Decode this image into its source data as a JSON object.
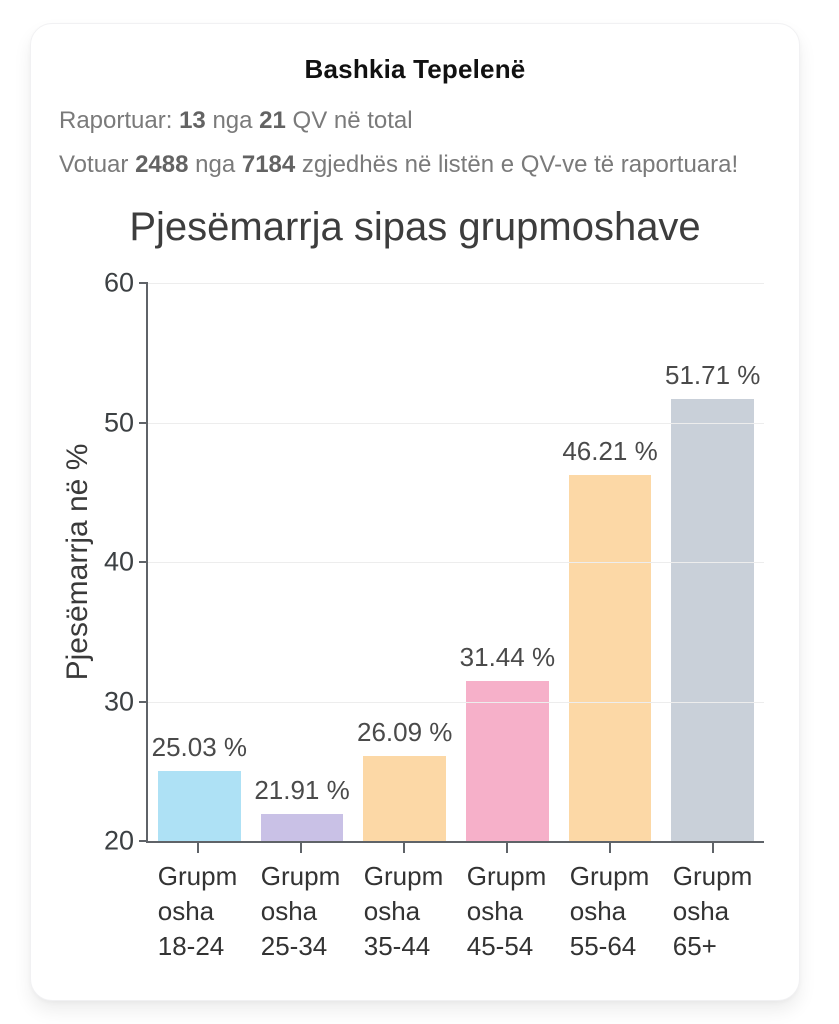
{
  "card": {
    "title": "Bashkia Tepelenë",
    "reported_line": {
      "label": "Raportuar:",
      "reported_count": "13",
      "conjunction": "nga",
      "total_count": "21",
      "suffix": "QV në total"
    },
    "voted_line": {
      "label": "Votuar",
      "voted_count": "2488",
      "conjunction": "nga",
      "total_count": "7184",
      "suffix": "zgjedhës në listën e QV-ve të raportuara!"
    }
  },
  "chart_data": {
    "type": "bar",
    "title": "Pjesëmarrja sipas grupmoshave",
    "ylabel": "Pjesëmarrja në %",
    "xlabel": "",
    "ylim": [
      20,
      60
    ],
    "yticks": [
      60,
      50,
      40,
      30,
      20
    ],
    "grid": true,
    "legend": false,
    "categories": [
      "Grupmosha 18-24",
      "Grupmosha 25-34",
      "Grupmosha 35-44",
      "Grupmosha 45-54",
      "Grupmosha 55-64",
      "Grupmosha 65+"
    ],
    "xtick_label_lines": [
      [
        "Grupm",
        "osha",
        "18-24"
      ],
      [
        "Grupm",
        "osha",
        "25-34"
      ],
      [
        "Grupm",
        "osha",
        "35-44"
      ],
      [
        "Grupm",
        "osha",
        "45-54"
      ],
      [
        "Grupm",
        "osha",
        "55-64"
      ],
      [
        "Grupm",
        "osha",
        "65+"
      ]
    ],
    "values": [
      25.03,
      21.91,
      26.09,
      31.44,
      46.21,
      51.71
    ],
    "value_labels": [
      "25.03 %",
      "21.91 %",
      "26.09 %",
      "31.44 %",
      "46.21 %",
      "51.71 %"
    ],
    "bar_colors": [
      "#aee1f5",
      "#c9c1e6",
      "#fcd8a6",
      "#f6b0c9",
      "#fcd8a6",
      "#c9d0d9"
    ],
    "colors": {
      "axis": "#5f6368",
      "grid": "#ededed",
      "tick_text": "#3c4043",
      "value_label_text": "#4a4a4a",
      "title_text": "#3d3d3d"
    }
  }
}
